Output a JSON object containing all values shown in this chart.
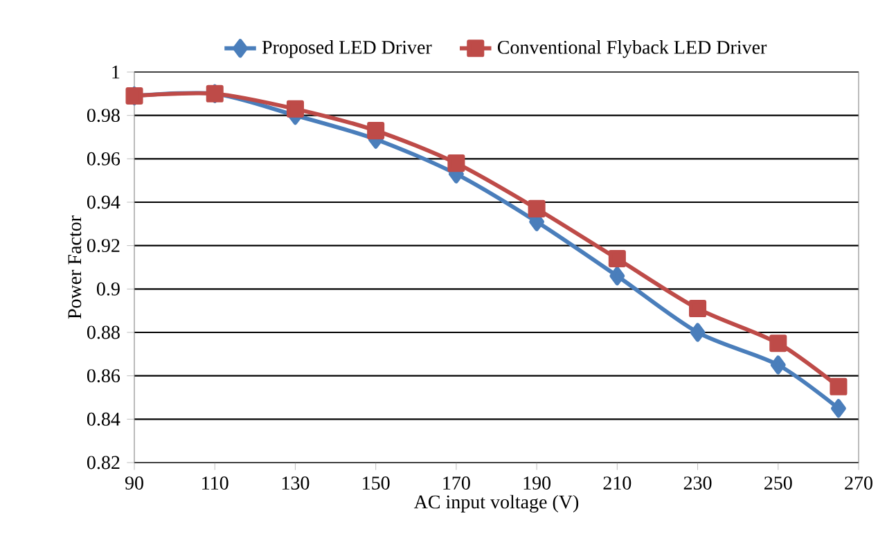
{
  "chart_data": {
    "type": "line",
    "xlabel": "AC input voltage (V)",
    "ylabel": "Power Factor",
    "xlim": [
      90,
      270
    ],
    "xticks": [
      90,
      110,
      130,
      150,
      170,
      190,
      210,
      230,
      250,
      270
    ],
    "ylim": [
      0.82,
      1
    ],
    "yticks": [
      0.82,
      0.84,
      0.86,
      0.88,
      0.9,
      0.92,
      0.94,
      0.96,
      0.98,
      1
    ],
    "grid": "y",
    "legend": "top",
    "line_style": "solid",
    "x": [
      90,
      110,
      130,
      150,
      170,
      190,
      210,
      230,
      250,
      265
    ],
    "series": [
      {
        "name": "Proposed LED Driver",
        "color": "#4a7ebb",
        "marker": "diamond",
        "values": [
          0.989,
          0.99,
          0.98,
          0.969,
          0.953,
          0.931,
          0.906,
          0.88,
          0.865,
          0.845
        ]
      },
      {
        "name": "Conventional Flyback LED Driver",
        "color": "#be4b48",
        "marker": "square",
        "values": [
          0.989,
          0.99,
          0.983,
          0.973,
          0.958,
          0.937,
          0.914,
          0.891,
          0.875,
          0.855
        ]
      }
    ]
  }
}
